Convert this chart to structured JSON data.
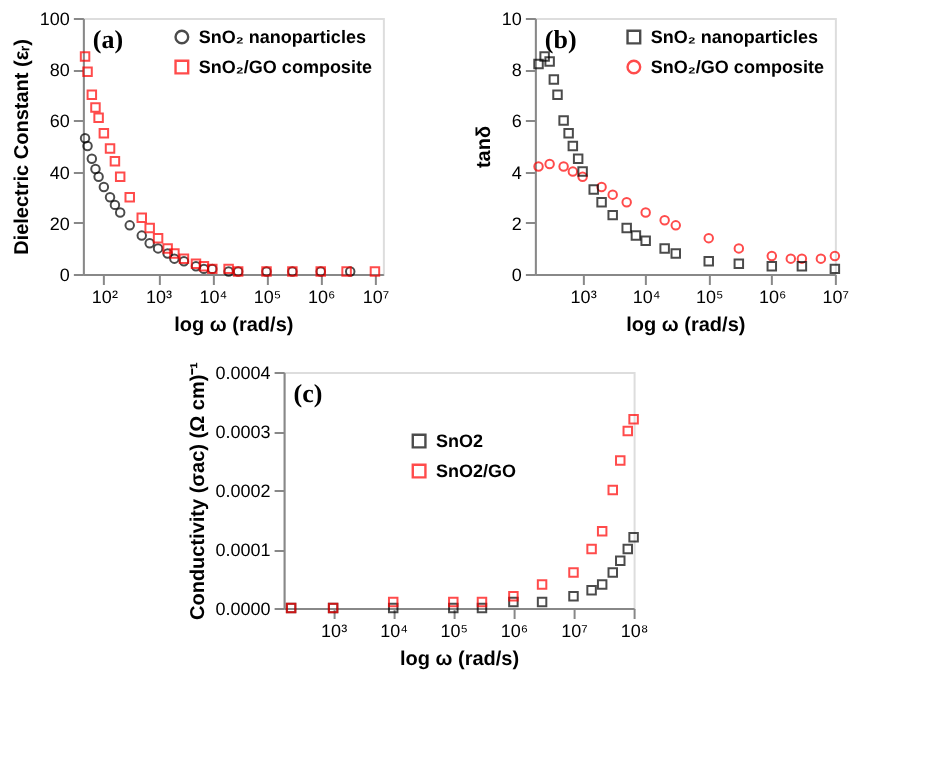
{
  "chart_data": [
    {
      "type": "scatter",
      "xlabel": "log ω (rad/s)",
      "ylabel": "Dielectric Constant (εᵣ)",
      "annotations": [
        "(a)"
      ],
      "log": "x",
      "grid": false,
      "legend": "top right",
      "xlim": [
        41,
        14000000
      ],
      "xticks": [
        {
          "value": 100,
          "label": "10²"
        },
        {
          "value": 1000,
          "label": "10³"
        },
        {
          "value": 10000,
          "label": "10⁴"
        },
        {
          "value": 100000,
          "label": "10⁵"
        },
        {
          "value": 1000000,
          "label": "10⁶"
        },
        {
          "value": 10000000,
          "label": "10⁷"
        }
      ],
      "ylim": [
        0,
        100
      ],
      "yticks": [
        0,
        20,
        40,
        60,
        80,
        100
      ],
      "series": [
        {
          "name": "SnO₂ nanoparticles",
          "color": "#000000",
          "marker": "circle",
          "x": [
            45,
            50,
            60,
            70,
            80,
            100,
            130,
            160,
            200,
            300,
            500,
            700,
            1000,
            1500,
            2000,
            3000,
            5000,
            7000,
            10000,
            20000,
            30000,
            100000,
            300000,
            1000000,
            3500000
          ],
          "values": [
            53,
            50,
            45,
            41,
            38,
            34,
            30,
            27,
            24,
            19,
            15,
            12,
            10,
            8,
            6,
            5,
            3,
            2,
            2,
            1,
            1,
            1,
            1,
            1,
            1
          ]
        },
        {
          "name": "SnO₂/GO composite",
          "color": "#ff0000",
          "marker": "square",
          "x": [
            45,
            50,
            60,
            70,
            80,
            100,
            130,
            160,
            200,
            300,
            500,
            700,
            1000,
            1500,
            2000,
            3000,
            5000,
            7000,
            10000,
            20000,
            30000,
            100000,
            300000,
            1000000,
            3000000,
            10000000
          ],
          "values": [
            85,
            79,
            70,
            65,
            61,
            55,
            49,
            44,
            38,
            30,
            22,
            18,
            14,
            10,
            8,
            6,
            4,
            3,
            2,
            2,
            1,
            1,
            1,
            1,
            1,
            1
          ]
        }
      ]
    },
    {
      "type": "scatter",
      "xlabel": "log ω (rad/s)",
      "ylabel": "tanδ",
      "annotations": [
        "(b)"
      ],
      "log": "x",
      "grid": false,
      "legend": "top right",
      "xlim": [
        175,
        10000000
      ],
      "xticks": [
        {
          "value": 1000,
          "label": "10³"
        },
        {
          "value": 10000,
          "label": "10⁴"
        },
        {
          "value": 100000,
          "label": "10⁵"
        },
        {
          "value": 1000000,
          "label": "10⁶"
        },
        {
          "value": 10000000,
          "label": "10⁷"
        }
      ],
      "ylim": [
        0,
        10
      ],
      "yticks": [
        0,
        2,
        4,
        6,
        8,
        10
      ],
      "series": [
        {
          "name": "SnO₂ nanoparticles",
          "color": "#000000",
          "marker": "square",
          "x": [
            200,
            250,
            300,
            350,
            400,
            500,
            600,
            700,
            850,
            1000,
            1500,
            2000,
            3000,
            5000,
            7000,
            10000,
            20000,
            30000,
            100000,
            300000,
            1000000,
            3000000,
            10000000
          ],
          "values": [
            8.2,
            8.5,
            8.3,
            7.6,
            7,
            6,
            5.5,
            5,
            4.5,
            4,
            3.3,
            2.8,
            2.3,
            1.8,
            1.5,
            1.3,
            1,
            0.8,
            0.5,
            0.4,
            0.3,
            0.3,
            0.2
          ]
        },
        {
          "name": "SnO₂/GO composite",
          "color": "#ff0000",
          "marker": "circle",
          "x": [
            200,
            300,
            500,
            700,
            1000,
            2000,
            3000,
            5000,
            10000,
            20000,
            30000,
            100000,
            300000,
            1000000,
            2000000,
            3000000,
            6000000,
            10000000
          ],
          "values": [
            4.2,
            4.3,
            4.2,
            4,
            3.8,
            3.4,
            3.1,
            2.8,
            2.4,
            2.1,
            1.9,
            1.4,
            1,
            0.7,
            0.6,
            0.6,
            0.6,
            0.7
          ]
        }
      ]
    },
    {
      "type": "scatter",
      "xlabel": "log ω (rad/s)",
      "ylabel": "Conductivity (σac) (Ω cm)⁻¹",
      "annotations": [
        "(c)"
      ],
      "log": "x",
      "grid": false,
      "legend": "top",
      "xlim": [
        150,
        100000000
      ],
      "xticks": [
        {
          "value": 1000,
          "label": "10³"
        },
        {
          "value": 10000,
          "label": "10⁴"
        },
        {
          "value": 100000,
          "label": "10⁵"
        },
        {
          "value": 1000000,
          "label": "10⁶"
        },
        {
          "value": 10000000,
          "label": "10⁷"
        },
        {
          "value": 100000000,
          "label": "10⁸"
        }
      ],
      "ylim": [
        0,
        0.0004
      ],
      "yticks": [
        {
          "value": 0,
          "label": "0.0000"
        },
        {
          "value": 0.0001,
          "label": "0.0001"
        },
        {
          "value": 0.0002,
          "label": "0.0002"
        },
        {
          "value": 0.0003,
          "label": "0.0003"
        },
        {
          "value": 0.0004,
          "label": "0.0004"
        }
      ],
      "series": [
        {
          "name": "SnO2",
          "color": "#000000",
          "marker": "square",
          "x": [
            200,
            1000,
            10000,
            100000,
            300000,
            1000000,
            3000000,
            10000000,
            20000000,
            30000000,
            45000000,
            60000000,
            80000000,
            100000000
          ],
          "values": [
            0,
            0,
            0,
            0,
            0,
            1e-05,
            1e-05,
            2e-05,
            3e-05,
            4e-05,
            6e-05,
            8e-05,
            0.0001,
            0.00012
          ]
        },
        {
          "name": "SnO2/GO",
          "color": "#ff0000",
          "marker": "square",
          "x": [
            200,
            1000,
            10000,
            100000,
            300000,
            1000000,
            3000000,
            10000000,
            20000000,
            30000000,
            45000000,
            60000000,
            80000000,
            100000000
          ],
          "values": [
            0,
            0,
            1e-05,
            1e-05,
            1e-05,
            2e-05,
            4e-05,
            6e-05,
            0.0001,
            0.00013,
            0.0002,
            0.00025,
            0.0003,
            0.00032
          ]
        }
      ]
    }
  ]
}
